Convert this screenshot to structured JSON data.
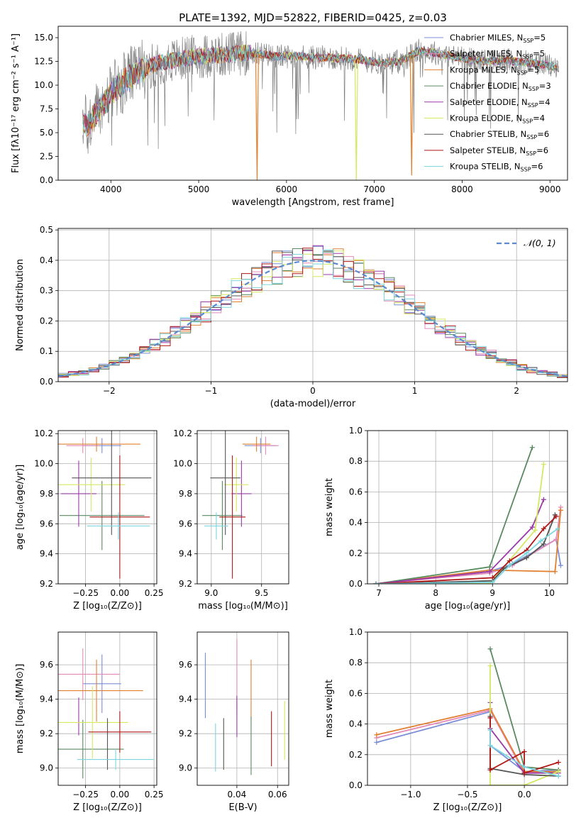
{
  "figure_title": "PLATE=1392, MJD=52822, FIBERID=0425, z=0.03",
  "colors": {
    "series": [
      "#7b8ed8",
      "#e48ab8",
      "#e08030",
      "#5a8a60",
      "#9a3aa8",
      "#d4e860",
      "#555555",
      "#b01818",
      "#7cd6e0"
    ],
    "normal": "#5b8ad0",
    "data_spectrum": "#808080",
    "grid": "#b0b0b0"
  },
  "chart_data": [
    {
      "id": "spectrum",
      "type": "line",
      "xlabel": "wavelength [Angstrom, rest frame]",
      "ylabel": "Flux [fλ10⁻¹⁷ erg cm⁻² s⁻¹ A⁻¹]",
      "xlim": [
        3400,
        9200
      ],
      "ylim": [
        0,
        16.2
      ],
      "xticks": [
        4000,
        5000,
        6000,
        7000,
        8000,
        9000
      ],
      "yticks": [
        0.0,
        2.5,
        5.0,
        7.5,
        10.0,
        12.5,
        15.0
      ],
      "grid": false,
      "legend_position": "top-right",
      "continuum": {
        "x": [
          3680,
          3750,
          3850,
          3950,
          4050,
          4200,
          4350,
          4500,
          4700,
          4900,
          5100,
          5300,
          5500,
          5700,
          5900,
          6100,
          6300,
          6500,
          6700,
          6900,
          7100,
          7300,
          7500,
          7700,
          7900,
          8100,
          8300,
          8500,
          8700,
          8900,
          9100
        ],
        "y": [
          6.2,
          5.8,
          7.4,
          8.4,
          9.6,
          10.8,
          11.6,
          12.2,
          12.6,
          12.9,
          13.1,
          13.2,
          13.4,
          13.3,
          13.0,
          13.1,
          12.9,
          12.9,
          12.8,
          12.6,
          12.3,
          12.5,
          13.6,
          13.4,
          13.0,
          12.7,
          12.5,
          12.6,
          12.4,
          12.2,
          11.8
        ]
      },
      "spikes": [
        {
          "series": "Kroupa MILES, N_SSP=5",
          "x": 5665,
          "y": 0
        },
        {
          "series": "Kroupa ELODIE, N_SSP=4",
          "x": 6795,
          "y": 0
        },
        {
          "series": "Kroupa MILES, N_SSP=5",
          "x": 7425,
          "y": 0.5
        }
      ],
      "series": [
        {
          "name": "Chabrier MILES, N_SSP=5"
        },
        {
          "name": "Salpeter MILES, N_SSP=5"
        },
        {
          "name": "Kroupa MILES, N_SSP=5"
        },
        {
          "name": "Chabrier ELODIE, N_SSP=3"
        },
        {
          "name": "Salpeter ELODIE, N_SSP=4"
        },
        {
          "name": "Kroupa ELODIE, N_SSP=4"
        },
        {
          "name": "Chabrier STELIB, N_SSP=6"
        },
        {
          "name": "Salpeter STELIB, N_SSP=6"
        },
        {
          "name": "Kroupa STELIB, N_SSP=6"
        }
      ]
    },
    {
      "id": "residuals",
      "type": "bar",
      "xlabel": "(data-model)/error",
      "ylabel": "Normed distribution",
      "xlim": [
        -2.5,
        2.5
      ],
      "ylim": [
        0,
        0.505
      ],
      "xticks": [
        -2,
        -1,
        0,
        1,
        2
      ],
      "yticks": [
        0.0,
        0.1,
        0.2,
        0.3,
        0.4,
        0.5
      ],
      "grid": true,
      "legend_position": "top-right",
      "normal_label": "𝒩(0, 1)",
      "bin_width": 0.1,
      "bin_start": -2.5
    },
    {
      "id": "age_vs_Z",
      "type": "scatter",
      "xlabel": "Z [log₁₀(Z/Z⊙)]",
      "ylabel": "age  [log₁₀(age/yr)]",
      "xlim": [
        -0.45,
        0.27
      ],
      "ylim": [
        9.2,
        10.22
      ],
      "xticks": [
        -0.25,
        0.0,
        0.25
      ],
      "xticklabels": [
        "−0.25",
        "0.00",
        "0.25"
      ],
      "yticks": [
        9.2,
        9.4,
        9.6,
        9.8,
        10.0,
        10.2
      ],
      "grid": true,
      "points": [
        {
          "series": "Chabrier MILES, N_SSP=5",
          "x": -0.13,
          "xerr": 0.14,
          "y": 10.12,
          "yerr": 0.05
        },
        {
          "series": "Salpeter MILES, N_SSP=5",
          "x": -0.27,
          "xerr": 0.12,
          "y": 10.12,
          "yerr": 0.05
        },
        {
          "series": "Kroupa MILES, N_SSP=5",
          "x": -0.17,
          "xerr": 0.32,
          "y": 10.13,
          "yerr": 0.05
        },
        {
          "series": "Chabrier ELODIE, N_SSP=3",
          "x": -0.13,
          "xerr": 0.31,
          "y": 9.655,
          "yerr": 0.23
        },
        {
          "series": "Salpeter ELODIE, N_SSP=4",
          "x": -0.3,
          "xerr": 0.13,
          "y": 9.8,
          "yerr": 0.22
        },
        {
          "series": "Kroupa ELODIE, N_SSP=4",
          "x": -0.21,
          "xerr": 0.25,
          "y": 9.86,
          "yerr": 0.18
        },
        {
          "series": "Chabrier STELIB, N_SSP=6",
          "x": -0.06,
          "xerr": 0.29,
          "y": 9.905,
          "yerr": 0.38
        },
        {
          "series": "Salpeter STELIB, N_SSP=6",
          "x": 0.0,
          "xerr": 0.22,
          "y": 9.645,
          "yerr": 0.41
        },
        {
          "series": "Kroupa STELIB, N_SSP=6",
          "x": -0.01,
          "xerr": 0.23,
          "y": 9.585,
          "yerr": 0.09
        }
      ]
    },
    {
      "id": "age_vs_mass",
      "type": "scatter",
      "xlabel": "mass [log₁₀(M/M⊙)]",
      "ylabel": "",
      "xlim": [
        8.86,
        9.77
      ],
      "ylim": [
        9.2,
        10.22
      ],
      "xticks": [
        9.0,
        9.5
      ],
      "xticklabels": [
        "9.0",
        "9.5"
      ],
      "yticks": [
        9.2,
        9.4,
        9.6,
        9.8,
        10.0,
        10.2
      ],
      "grid": true,
      "points": [
        {
          "series": "Chabrier MILES, N_SSP=5",
          "x": 9.49,
          "xerr": 0.16,
          "y": 10.12,
          "yerr": 0.05
        },
        {
          "series": "Salpeter MILES, N_SSP=5",
          "x": 9.54,
          "xerr": 0.13,
          "y": 10.12,
          "yerr": 0.06
        },
        {
          "series": "Kroupa MILES, N_SSP=5",
          "x": 9.45,
          "xerr": 0.14,
          "y": 10.13,
          "yerr": 0.05
        },
        {
          "series": "Chabrier ELODIE, N_SSP=3",
          "x": 9.11,
          "xerr": 0.2,
          "y": 9.655,
          "yerr": 0.23
        },
        {
          "series": "Salpeter ELODIE, N_SSP=4",
          "x": 9.3,
          "xerr": 0.1,
          "y": 9.8,
          "yerr": 0.22
        },
        {
          "series": "Kroupa ELODIE, N_SSP=4",
          "x": 9.25,
          "xerr": 0.12,
          "y": 9.86,
          "yerr": 0.18
        },
        {
          "series": "Chabrier STELIB, N_SSP=6",
          "x": 9.14,
          "xerr": 0.15,
          "y": 9.905,
          "yerr": 0.38
        },
        {
          "series": "Salpeter STELIB, N_SSP=6",
          "x": 9.21,
          "xerr": 0.13,
          "y": 9.645,
          "yerr": 0.41
        },
        {
          "series": "Kroupa STELIB, N_SSP=6",
          "x": 9.05,
          "xerr": 0.12,
          "y": 9.585,
          "yerr": 0.09
        }
      ]
    },
    {
      "id": "mass_weight_vs_age",
      "type": "line",
      "xlabel": "age  [log₁₀(age/yr)]",
      "ylabel": "mass weight",
      "xlim": [
        6.8,
        10.32
      ],
      "ylim": [
        0,
        1.0
      ],
      "xticks": [
        7,
        8,
        9,
        10
      ],
      "yticks": [
        0.0,
        0.2,
        0.4,
        0.6,
        0.8,
        1.0
      ],
      "grid": true,
      "series": [
        {
          "name": "Chabrier MILES, N_SSP=5",
          "x": [
            6.95,
            8.95,
            9.35,
            10.12,
            10.2
          ],
          "y": [
            0.0,
            0.08,
            0.13,
            0.29,
            0.12
          ]
        },
        {
          "name": "Salpeter MILES, N_SSP=5",
          "x": [
            6.95,
            8.95,
            9.35,
            10.12,
            10.2
          ],
          "y": [
            0.0,
            0.07,
            0.12,
            0.29,
            0.5
          ]
        },
        {
          "name": "Kroupa MILES, N_SSP=5",
          "x": [
            6.95,
            8.95,
            10.1,
            10.2
          ],
          "y": [
            0.0,
            0.09,
            0.08,
            0.48
          ]
        },
        {
          "name": "Chabrier ELODIE, N_SSP=3",
          "x": [
            6.95,
            8.95,
            9.7
          ],
          "y": [
            0.0,
            0.11,
            0.89
          ]
        },
        {
          "name": "Salpeter ELODIE, N_SSP=4",
          "x": [
            6.95,
            8.95,
            9.7,
            9.9
          ],
          "y": [
            0.0,
            0.08,
            0.37,
            0.55
          ]
        },
        {
          "name": "Kroupa ELODIE, N_SSP=4",
          "x": [
            6.95,
            8.95,
            9.75,
            9.9
          ],
          "y": [
            0.0,
            0.0,
            0.35,
            0.78
          ]
        },
        {
          "name": "Chabrier STELIB, N_SSP=6",
          "x": [
            6.95,
            9.0,
            9.2,
            9.6,
            9.9,
            10.1
          ],
          "y": [
            0.0,
            0.02,
            0.1,
            0.17,
            0.26,
            0.45
          ]
        },
        {
          "name": "Salpeter STELIB, N_SSP=6",
          "x": [
            6.95,
            9.0,
            9.3,
            9.6,
            9.9,
            10.12
          ],
          "y": [
            0.0,
            0.04,
            0.15,
            0.22,
            0.36,
            0.44
          ]
        },
        {
          "name": "Kroupa STELIB, N_SSP=6",
          "x": [
            6.95,
            9.0,
            9.3,
            9.6,
            9.85,
            10.15
          ],
          "y": [
            0.0,
            0.01,
            0.12,
            0.2,
            0.28,
            0.36
          ]
        }
      ]
    },
    {
      "id": "mass_vs_Z",
      "type": "scatter",
      "xlabel": "Z [log₁₀(Z/Z⊙)]",
      "ylabel": "mass [log₁₀(M/M⊙)]",
      "xlim": [
        -0.45,
        0.27
      ],
      "ylim": [
        8.9,
        9.79
      ],
      "xticks": [
        -0.25,
        0.0,
        0.25
      ],
      "xticklabels": [
        "−0.25",
        "0.00",
        "0.25"
      ],
      "yticks": [
        9.0,
        9.2,
        9.4,
        9.6
      ],
      "grid": true,
      "points": [
        {
          "series": "Chabrier MILES, N_SSP=5",
          "x": -0.13,
          "xerr": 0.14,
          "y": 9.49,
          "yerr": 0.17
        },
        {
          "series": "Salpeter MILES, N_SSP=5",
          "x": -0.27,
          "xerr": 0.27,
          "y": 9.545,
          "yerr": 0.15
        },
        {
          "series": "Kroupa MILES, N_SSP=5",
          "x": -0.17,
          "xerr": 0.34,
          "y": 9.45,
          "yerr": 0.18
        },
        {
          "series": "Chabrier ELODIE, N_SSP=3",
          "x": -0.27,
          "xerr": 0.3,
          "y": 9.11,
          "yerr": 0.17
        },
        {
          "series": "Salpeter ELODIE, N_SSP=4",
          "x": -0.3,
          "xerr": 0.0,
          "y": 9.3,
          "yerr": 0.11
        },
        {
          "series": "Kroupa ELODIE, N_SSP=4",
          "x": -0.2,
          "xerr": 0.26,
          "y": 9.265,
          "yerr": 0.21
        },
        {
          "series": "Chabrier STELIB, N_SSP=6",
          "x": -0.09,
          "xerr": 0.0,
          "y": 9.14,
          "yerr": 0.15
        },
        {
          "series": "Salpeter STELIB, N_SSP=6",
          "x": 0.0,
          "xerr": 0.23,
          "y": 9.21,
          "yerr": 0.12
        },
        {
          "series": "Kroupa STELIB, N_SSP=6",
          "x": -0.03,
          "xerr": 0.28,
          "y": 9.05,
          "yerr": 0.06
        }
      ]
    },
    {
      "id": "mass_vs_ebv",
      "type": "scatter",
      "xlabel": "E(B-V)",
      "ylabel": "",
      "xlim": [
        0.0205,
        0.0655
      ],
      "ylim": [
        8.9,
        9.79
      ],
      "xticks": [
        0.04,
        0.06
      ],
      "xticklabels": [
        "0.04",
        "0.06"
      ],
      "yticks": [
        9.0,
        9.2,
        9.4,
        9.6
      ],
      "grid": true,
      "points": [
        {
          "series": "Chabrier MILES, N_SSP=5",
          "x": 0.0245,
          "y": 9.48,
          "yerr": 0.19
        },
        {
          "series": "Salpeter MILES, N_SSP=5",
          "x": 0.04,
          "y": 9.53,
          "yerr": 0.22
        },
        {
          "series": "Kroupa MILES, N_SSP=5",
          "x": 0.047,
          "y": 9.45,
          "yerr": 0.18
        },
        {
          "series": "Chabrier ELODIE, N_SSP=3",
          "x": 0.047,
          "y": 9.13,
          "yerr": 0.17
        },
        {
          "series": "Salpeter ELODIE, N_SSP=4",
          "x": 0.04,
          "y": 9.3,
          "yerr": 0.12
        },
        {
          "series": "Kroupa ELODIE, N_SSP=4",
          "x": 0.0635,
          "y": 9.22,
          "yerr": 0.17
        },
        {
          "series": "Chabrier STELIB, N_SSP=6",
          "x": 0.0335,
          "y": 9.14,
          "yerr": 0.15
        },
        {
          "series": "Salpeter STELIB, N_SSP=6",
          "x": 0.057,
          "y": 9.17,
          "yerr": 0.16
        },
        {
          "series": "Kroupa STELIB, N_SSP=6",
          "x": 0.0295,
          "y": 9.12,
          "yerr": 0.14
        }
      ]
    },
    {
      "id": "mass_weight_vs_Z",
      "type": "line",
      "xlabel": "Z [log₁₀(Z/Z⊙)]",
      "ylabel": "mass weight",
      "xlim": [
        -1.38,
        0.38
      ],
      "ylim": [
        0,
        1.0
      ],
      "xticks": [
        -1.0,
        -0.5,
        0.0
      ],
      "xticklabels": [
        "−1.0",
        "−0.5",
        "0.0"
      ],
      "yticks": [
        0.0,
        0.2,
        0.4,
        0.6,
        0.8,
        1.0
      ],
      "grid": true,
      "series": [
        {
          "name": "Chabrier MILES, N_SSP=5",
          "x": [
            -1.3,
            -0.3,
            -0.3,
            0.0,
            0.3
          ],
          "y": [
            0.28,
            0.48,
            0.26,
            0.09,
            0.1
          ]
        },
        {
          "name": "Salpeter MILES, N_SSP=5",
          "x": [
            -1.3,
            -0.3,
            0.0,
            0.3
          ],
          "y": [
            0.31,
            0.49,
            0.08,
            0.09
          ]
        },
        {
          "name": "Kroupa MILES, N_SSP=5",
          "x": [
            -1.3,
            -0.3,
            0.0,
            0.3
          ],
          "y": [
            0.33,
            0.5,
            0.09,
            0.09
          ]
        },
        {
          "name": "Chabrier ELODIE, N_SSP=3",
          "x": [
            -0.3,
            0.0,
            0.3
          ],
          "y": [
            0.89,
            0.12,
            0.1
          ]
        },
        {
          "name": "Salpeter ELODIE, N_SSP=4",
          "x": [
            -0.3,
            -0.3,
            0.0,
            0.3
          ],
          "y": [
            0.54,
            0.37,
            0.08,
            0.08
          ]
        },
        {
          "name": "Kroupa ELODIE, N_SSP=4",
          "x": [
            -0.3,
            -0.3,
            0.0,
            0.3
          ],
          "y": [
            0.78,
            0.0,
            0.0,
            0.09
          ]
        },
        {
          "name": "Chabrier STELIB, N_SSP=6",
          "x": [
            -0.3,
            -0.3,
            0.0,
            0.3
          ],
          "y": [
            0.45,
            0.11,
            0.07,
            0.06
          ]
        },
        {
          "name": "Salpeter STELIB, N_SSP=6",
          "x": [
            -0.3,
            -0.3,
            0.0,
            0.0,
            0.3
          ],
          "y": [
            0.44,
            0.1,
            0.22,
            0.08,
            0.15
          ]
        },
        {
          "name": "Kroupa STELIB, N_SSP=6",
          "x": [
            -0.3,
            -0.3,
            0.0,
            0.3
          ],
          "y": [
            0.36,
            0.26,
            0.12,
            0.06
          ]
        }
      ]
    }
  ]
}
